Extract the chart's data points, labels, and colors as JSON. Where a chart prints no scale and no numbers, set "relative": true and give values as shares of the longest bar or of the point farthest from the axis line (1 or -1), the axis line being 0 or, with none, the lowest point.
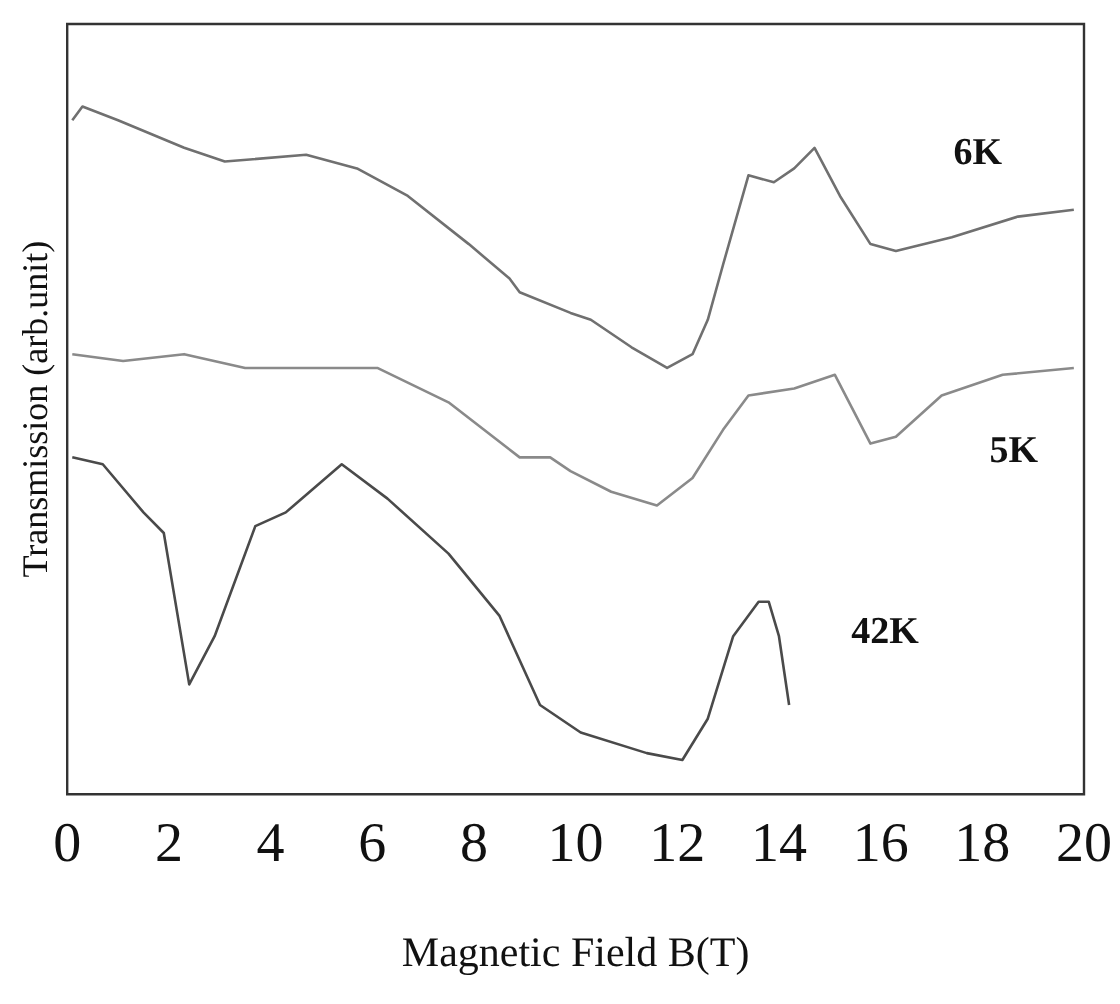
{
  "chart_data": {
    "type": "line",
    "relative": true,
    "xlabel": "Magnetic Field B(T)",
    "ylabel": "Transmission (arb.unit)",
    "xlim": [
      0,
      20
    ],
    "xticks": [
      0,
      2,
      4,
      6,
      8,
      10,
      12,
      14,
      16,
      18,
      20
    ],
    "grid": false,
    "legend": false,
    "marker": "none",
    "line_style": "solid",
    "series": [
      {
        "name": "6K",
        "color": "#707070",
        "x": [
          0.1,
          0.3,
          1,
          2.3,
          3.1,
          4.7,
          5.7,
          6.7,
          7.9,
          8.7,
          8.9,
          9.9,
          10.3,
          11.1,
          11.8,
          12.3,
          12.6,
          12.9,
          13.4,
          13.9,
          14.3,
          14.7,
          15.2,
          15.8,
          16.3,
          17.4,
          18.7,
          19.8
        ],
        "values": [
          0.98,
          1,
          0.98,
          0.94,
          0.92,
          0.93,
          0.91,
          0.87,
          0.8,
          0.75,
          0.73,
          0.7,
          0.69,
          0.65,
          0.62,
          0.64,
          0.69,
          0.77,
          0.9,
          0.89,
          0.91,
          0.94,
          0.87,
          0.8,
          0.79,
          0.81,
          0.84,
          0.85
        ]
      },
      {
        "name": "5K",
        "color": "#8a8a8a",
        "x": [
          0.1,
          1.1,
          2.3,
          3.5,
          5.1,
          6.1,
          7.5,
          8.9,
          9.5,
          9.9,
          10.7,
          11.6,
          12.3,
          12.9,
          13.4,
          14.3,
          15.1,
          15.8,
          16.3,
          17.2,
          18.4,
          19.8
        ],
        "values": [
          0.64,
          0.63,
          0.64,
          0.62,
          0.62,
          0.62,
          0.57,
          0.49,
          0.49,
          0.47,
          0.44,
          0.42,
          0.46,
          0.53,
          0.58,
          0.59,
          0.61,
          0.51,
          0.52,
          0.58,
          0.61,
          0.62
        ]
      },
      {
        "name": "42K",
        "color": "#4a4a4a",
        "x": [
          0.1,
          0.7,
          1.5,
          1.9,
          2.4,
          2.9,
          3.7,
          4.3,
          5.4,
          6.3,
          7.5,
          8.5,
          9.3,
          10.1,
          11.4,
          12.1,
          12.6,
          13.1,
          13.6,
          13.8,
          14.0,
          14.2
        ],
        "values": [
          0.49,
          0.48,
          0.41,
          0.38,
          0.16,
          0.23,
          0.39,
          0.41,
          0.48,
          0.43,
          0.35,
          0.26,
          0.13,
          0.09,
          0.06,
          0.05,
          0.11,
          0.23,
          0.28,
          0.28,
          0.23,
          0.13
        ]
      }
    ]
  }
}
